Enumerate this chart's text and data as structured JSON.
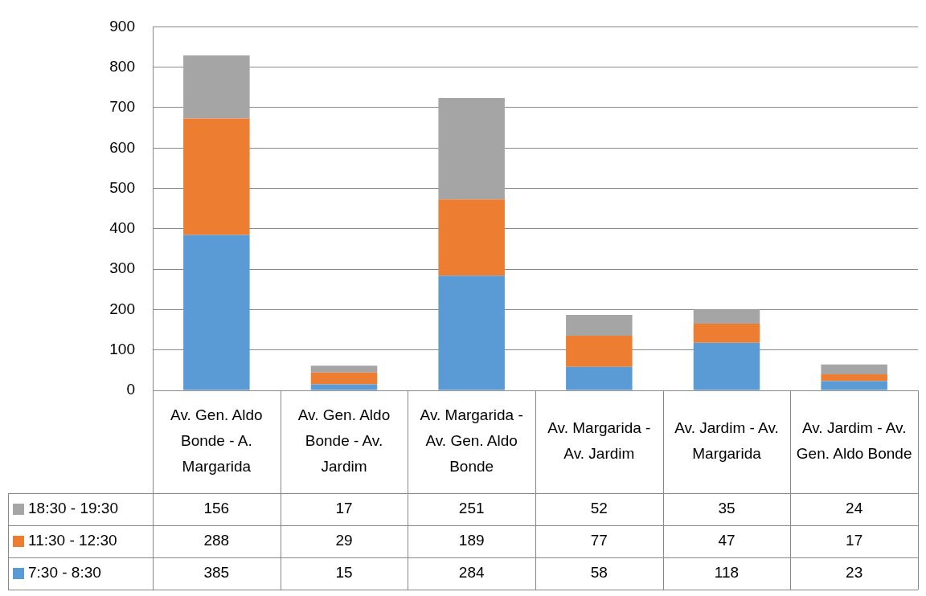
{
  "chart_data": {
    "type": "bar",
    "stacked": true,
    "categories": [
      "Av. Gen. Aldo Bonde - A. Margarida",
      "Av. Gen. Aldo Bonde - Av. Jardim",
      "Av. Margarida - Av. Gen. Aldo Bonde",
      "Av. Margarida - Av. Jardim",
      "Av. Jardim - Av. Margarida",
      "Av. Jardim - Av. Gen. Aldo Bonde"
    ],
    "series": [
      {
        "name": "7:30 - 8:30",
        "color": "#5b9bd5",
        "values": [
          385,
          15,
          284,
          58,
          118,
          23
        ]
      },
      {
        "name": "11:30 - 12:30",
        "color": "#ed7d31",
        "values": [
          288,
          29,
          189,
          77,
          47,
          17
        ]
      },
      {
        "name": "18:30 - 19:30",
        "color": "#a5a5a5",
        "values": [
          156,
          17,
          251,
          52,
          35,
          24
        ]
      }
    ],
    "ylim": [
      0,
      900
    ],
    "yticks": [
      0,
      100,
      200,
      300,
      400,
      500,
      600,
      700,
      800,
      900
    ],
    "grid": "y",
    "legend": "bottom",
    "data_labels": true
  }
}
